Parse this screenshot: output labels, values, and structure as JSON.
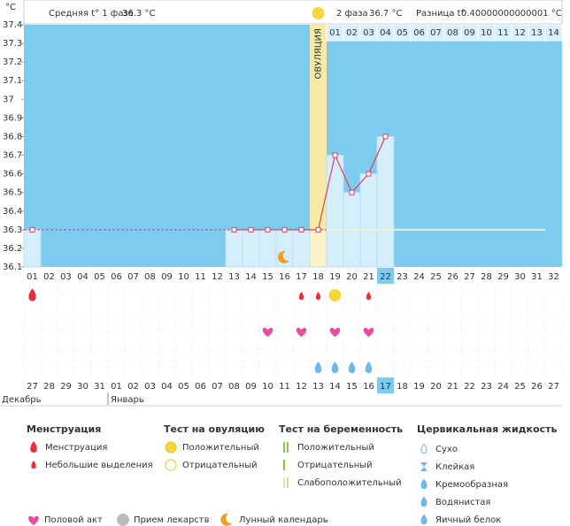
{
  "chart_data": {
    "type": "line",
    "y_unit": "°C",
    "summary": {
      "phase1_label": "Средняя t° 1 фаза",
      "phase1_value": "36.3 °C",
      "phase2_label": "2 фаза",
      "phase2_value": "36.7 °C",
      "diff_label": "Разница t°",
      "diff_value": "0.40000000000001 °C"
    },
    "categories": [
      "01",
      "02",
      "03",
      "04",
      "05",
      "06",
      "07",
      "08",
      "09",
      "10",
      "11",
      "12",
      "13",
      "14",
      "15",
      "16",
      "17",
      "18",
      "19",
      "20",
      "21",
      "22",
      "23",
      "24",
      "25",
      "26",
      "27",
      "28",
      "29",
      "30",
      "31",
      "32"
    ],
    "values": [
      36.3,
      null,
      null,
      null,
      null,
      null,
      null,
      null,
      null,
      null,
      null,
      null,
      36.3,
      36.3,
      36.3,
      36.3,
      36.3,
      36.3,
      36.7,
      36.5,
      36.6,
      36.8,
      null,
      null,
      null,
      null,
      null,
      null,
      null,
      null,
      null,
      null
    ],
    "color": "#e0405a",
    "coverline": 36.3,
    "ylim": [
      36.1,
      37.4
    ],
    "yticks": [
      36.1,
      36.2,
      36.3,
      36.4,
      36.5,
      36.6,
      36.7,
      36.8,
      36.9,
      37,
      37.1,
      37.2,
      37.3,
      37.4
    ],
    "ovulation_day": 18,
    "ovulation_label": "ОВУЛЯЦИЯ",
    "current_day": 22,
    "phase_days": [
      "01",
      "02",
      "03",
      "04",
      "05",
      "06",
      "07",
      "08",
      "09",
      "10",
      "11",
      "12",
      "13",
      "14"
    ],
    "dates": [
      "27",
      "28",
      "29",
      "30",
      "31",
      "01",
      "02",
      "03",
      "04",
      "05",
      "06",
      "07",
      "08",
      "09",
      "10",
      "11",
      "12",
      "13",
      "14",
      "15",
      "16",
      "17",
      "18",
      "19",
      "20",
      "21",
      "22",
      "23",
      "24",
      "25",
      "26",
      "27"
    ],
    "weekend_dates": [
      0,
      1,
      7,
      8,
      14,
      15,
      22,
      28,
      29
    ],
    "months": [
      {
        "name": "Декабрь",
        "start": 1
      },
      {
        "name": "Январь",
        "start": 6
      }
    ],
    "events": {
      "menstruation": [
        1
      ],
      "spotting": [
        17,
        18,
        21
      ],
      "ovulation_positive": [
        19
      ],
      "intercourse": [
        15,
        17,
        19,
        21
      ],
      "egg_white": [
        18,
        19,
        20,
        21
      ],
      "moon": [
        16
      ]
    }
  },
  "legend": {
    "sections": [
      {
        "title": "Менструация",
        "items": [
          "Менструация",
          "Небольшие выделения"
        ]
      },
      {
        "title": "Тест на овуляцию",
        "items": [
          "Положительный",
          "Отрицательный"
        ]
      },
      {
        "title": "Тест на беременность",
        "items": [
          "Положительный",
          "Отрицательный",
          "Слабоположительный"
        ]
      },
      {
        "title": "Цервикальная жидкость",
        "items": [
          "Сухо",
          "Клейкая",
          "Кремообразная",
          "Водянистая",
          "Яичный белок"
        ]
      }
    ],
    "extra": [
      "Половой акт",
      "Прием лекарств",
      "Лунный календарь"
    ]
  }
}
